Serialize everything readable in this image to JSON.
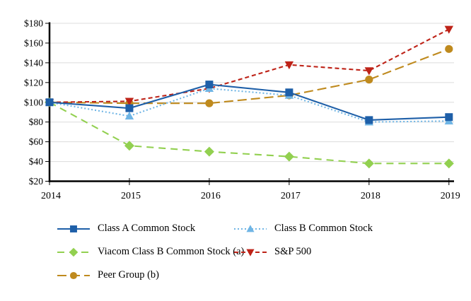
{
  "chart_data": {
    "type": "line",
    "title": "",
    "xlabel": "",
    "ylabel": "",
    "categories": [
      "2014",
      "2015",
      "2016",
      "2017",
      "2018",
      "2019"
    ],
    "y_ticks": [
      20,
      40,
      60,
      80,
      100,
      120,
      140,
      160,
      180
    ],
    "y_tick_labels": [
      "$20",
      "$40",
      "$60",
      "$80",
      "$100",
      "$120",
      "$140",
      "$160",
      "$180"
    ],
    "ylim": [
      20,
      180
    ],
    "grid": "horizontal",
    "legend_position": "bottom",
    "axis_color": "#000000",
    "gridline_color": "#dcdcdc",
    "series": [
      {
        "name": "Class A Common Stock",
        "values": [
          100,
          94,
          118,
          110,
          82,
          85
        ],
        "color": "#1E5FA8",
        "marker": "square",
        "dash": ""
      },
      {
        "name": "Class B Common Stock",
        "values": [
          100,
          86,
          114,
          107,
          80,
          81
        ],
        "color": "#6FB5E5",
        "marker": "triangle-up",
        "dash": "2 3"
      },
      {
        "name": "Viacom Class B Common Stock (a)",
        "values": [
          100,
          56,
          50,
          45,
          38,
          38
        ],
        "color": "#92D050",
        "marker": "diamond",
        "dash": "10 7"
      },
      {
        "name": "S&P 500",
        "values": [
          100,
          101,
          114,
          138,
          132,
          174
        ],
        "color": "#BE2318",
        "marker": "triangle-down",
        "dash": "6 4"
      },
      {
        "name": "Peer Group (b)",
        "values": [
          100,
          99,
          99,
          107,
          123,
          154
        ],
        "color": "#BF8A1E",
        "marker": "circle",
        "dash": "13 6"
      }
    ],
    "draw_order": [
      2,
      4,
      3,
      1,
      0
    ]
  }
}
